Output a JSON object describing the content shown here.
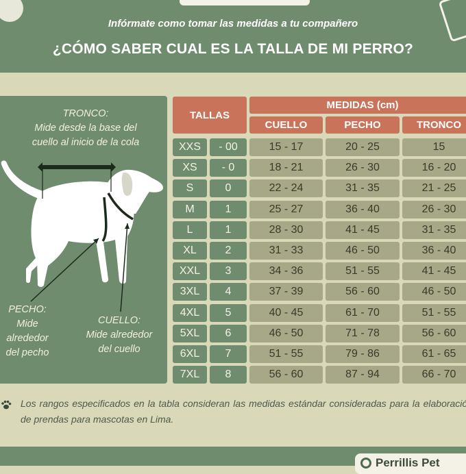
{
  "header": {
    "subtitle": "Infórmate como tomar las medidas a tu compañero",
    "title": "¿CÓMO SABER CUAL ES LA TALLA DE MI PERRO?"
  },
  "diagram": {
    "tronco_title": "TRONCO:",
    "tronco_desc_1": "Mide desde la base del",
    "tronco_desc_2": "cuello al inicio de la cola",
    "pecho_title": "PECHO:",
    "pecho_desc_1": "Mide",
    "pecho_desc_2": "alrededor",
    "pecho_desc_3": "del pecho",
    "cuello_title": "CUELLO:",
    "cuello_desc_1": "Mide alrededor",
    "cuello_desc_2": "del cuello"
  },
  "table": {
    "tallas_header": "TALLAS",
    "medidas_header": "MEDIDAS (cm)",
    "columns": [
      "CUELLO",
      "PECHO",
      "TRONCO"
    ],
    "rows": [
      {
        "size": "XXS",
        "num": "- 00",
        "cuello": "15 - 17",
        "pecho": "20 - 25",
        "tronco": "15"
      },
      {
        "size": "XS",
        "num": "- 0",
        "cuello": "18 - 21",
        "pecho": "26 - 30",
        "tronco": "16 - 20"
      },
      {
        "size": "S",
        "num": "0",
        "cuello": "22 - 24",
        "pecho": "31 - 35",
        "tronco": "21 - 25"
      },
      {
        "size": "M",
        "num": "1",
        "cuello": "25 - 27",
        "pecho": "36 - 40",
        "tronco": "26 - 30"
      },
      {
        "size": "L",
        "num": "1",
        "cuello": "28 - 30",
        "pecho": "41 - 45",
        "tronco": "31 - 35"
      },
      {
        "size": "XL",
        "num": "2",
        "cuello": "31 - 33",
        "pecho": "46 - 50",
        "tronco": "36 - 40"
      },
      {
        "size": "XXL",
        "num": "3",
        "cuello": "34 - 36",
        "pecho": "51 - 55",
        "tronco": "41 - 45"
      },
      {
        "size": "3XL",
        "num": "4",
        "cuello": "37 - 39",
        "pecho": "56 - 60",
        "tronco": "46 - 50"
      },
      {
        "size": "4XL",
        "num": "5",
        "cuello": "40 - 45",
        "pecho": "61 - 70",
        "tronco": "51 - 55"
      },
      {
        "size": "5XL",
        "num": "6",
        "cuello": "46 - 50",
        "pecho": "71 - 78",
        "tronco": "56 - 60"
      },
      {
        "size": "6XL",
        "num": "7",
        "cuello": "51 - 55",
        "pecho": "79 - 86",
        "tronco": "61 - 65"
      },
      {
        "size": "7XL",
        "num": "8",
        "cuello": "56 - 60",
        "pecho": "87 - 94",
        "tronco": "66 - 70"
      }
    ]
  },
  "footer": {
    "note": "Los rangos especificados en la tabla consideran las medidas estándar consideradas para la elaboración de prendas para mascotas en Lima.",
    "brand": "Perrillis Pet"
  },
  "colors": {
    "green": "#6f8c6f",
    "cream": "#d9d8b9",
    "terracotta": "#c9745a",
    "value_cell": "#a7a888"
  },
  "icons": [
    "paw-icon",
    "phone-icon",
    "dog-illustration",
    "brand-logo-icon"
  ]
}
